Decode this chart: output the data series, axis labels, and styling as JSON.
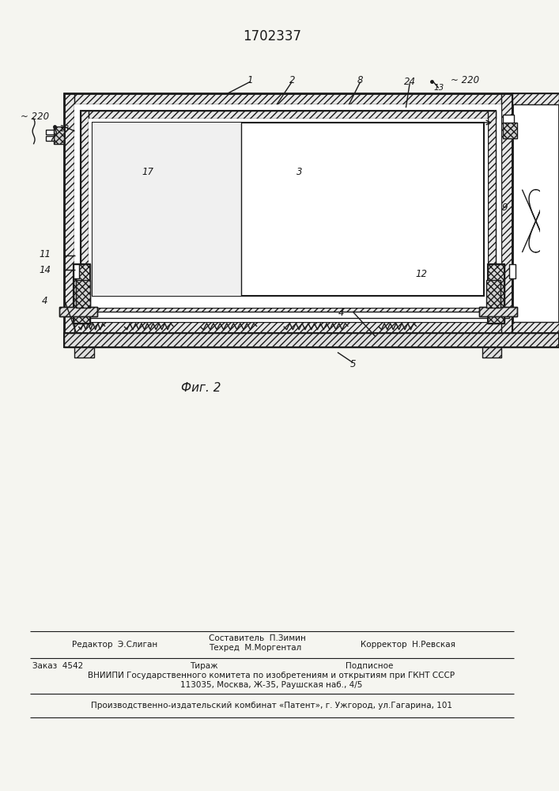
{
  "patent_number": "1702337",
  "figure_label": "Фиг. 2",
  "bg": "#f5f5f0",
  "lc": "#1a1a1a",
  "footer": {
    "row1_left": "Редактор  Э.Слиган",
    "row1_center_top": "Составитель  П.Зимин",
    "row1_center_bot": "Техред  М.Моргентал",
    "row1_right": "Корректор  Н.Ревская",
    "row2_col1": "Заказ  4542",
    "row2_col2": "Тираж",
    "row2_col3": "Подписное",
    "row2_line1": "ВНИИПИ Государственного комитета по изобретениям и открытиям при ГКНТ СССР",
    "row2_line2": "113035, Москва, Ж-35, Раушская наб., 4/5",
    "last_line": "Производственно-издательский комбинат «Патент», г. Ужгород, ул.Гагарина, 101"
  }
}
